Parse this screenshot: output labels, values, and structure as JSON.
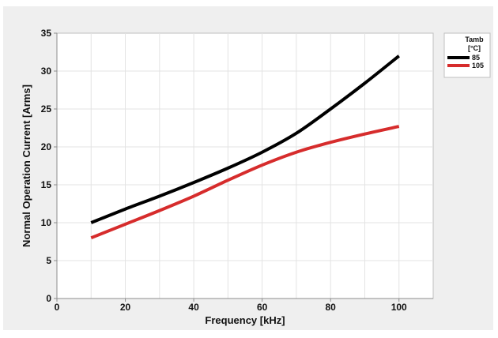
{
  "chart_data": {
    "type": "line",
    "title": "",
    "xlabel": "Frequency [kHz]",
    "ylabel": "Normal Operation Current [Arms]",
    "xlim": [
      0,
      110
    ],
    "ylim": [
      0,
      35
    ],
    "xticks": [
      0,
      20,
      40,
      60,
      80,
      100
    ],
    "yticks": [
      0,
      5,
      10,
      15,
      20,
      25,
      30,
      35
    ],
    "grid": true,
    "legend_position": "right",
    "legend_title_lines": [
      "Tamb",
      "[°C]"
    ],
    "series": [
      {
        "name": "85",
        "color": "#000000",
        "x": [
          10,
          20,
          30,
          40,
          50,
          60,
          70,
          80,
          90,
          100
        ],
        "y": [
          10.0,
          11.8,
          13.5,
          15.3,
          17.2,
          19.3,
          21.8,
          25.0,
          28.4,
          32.0
        ]
      },
      {
        "name": "105",
        "color": "#d62c2c",
        "x": [
          10,
          20,
          30,
          40,
          50,
          60,
          70,
          80,
          90,
          100
        ],
        "y": [
          8.0,
          9.8,
          11.6,
          13.5,
          15.6,
          17.6,
          19.3,
          20.6,
          21.7,
          22.7
        ]
      }
    ]
  }
}
